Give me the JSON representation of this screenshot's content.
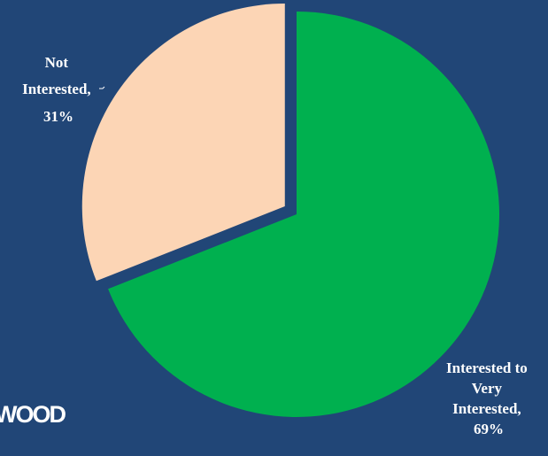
{
  "chart_data": {
    "type": "pie",
    "slices": [
      {
        "label_lines": [
          "Interested to",
          "Very",
          "Interested,",
          "69%"
        ],
        "category": "Interested to Very Interested",
        "value": 69,
        "color": "#00B04F",
        "exploded": false
      },
      {
        "label_lines": [
          "Not",
          "Interested,",
          "31%"
        ],
        "category": "Not Interested",
        "value": 31,
        "color": "#FCD5B5",
        "exploded": true
      }
    ],
    "start_angle_deg": 0,
    "direction": "clockwise",
    "legend": "none"
  },
  "logo": {
    "text": "WOOD"
  },
  "colors": {
    "background": "#214677",
    "label_text": "#ffffff"
  }
}
